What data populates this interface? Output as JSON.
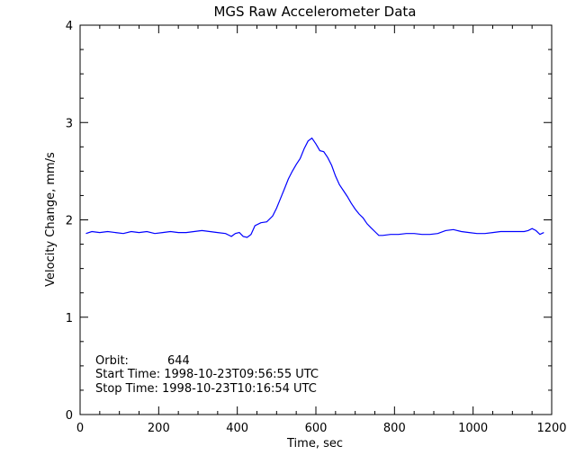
{
  "chart_data": {
    "type": "line",
    "title": "MGS Raw Accelerometer Data",
    "xlabel": "Time, sec",
    "ylabel": "Velocity Change, mm/s",
    "xlim": [
      0,
      1200
    ],
    "ylim": [
      0,
      4
    ],
    "xticks": [
      "0",
      "200",
      "400",
      "600",
      "800",
      "1000",
      "1200"
    ],
    "yticks": [
      "0",
      "1",
      "2",
      "3",
      "4"
    ],
    "grid": false,
    "line_color": "#0000ff",
    "series": [
      {
        "x": [
          15,
          30,
          50,
          70,
          90,
          110,
          130,
          150,
          170,
          190,
          210,
          230,
          250,
          270,
          290,
          310,
          330,
          350,
          370,
          385,
          395,
          405,
          415,
          425,
          435,
          445,
          460,
          475,
          490,
          500,
          510,
          520,
          530,
          540,
          550,
          560,
          570,
          580,
          590,
          600,
          610,
          620,
          630,
          640,
          650,
          660,
          670,
          680,
          690,
          700,
          710,
          720,
          730,
          740,
          750,
          760,
          770,
          790,
          810,
          830,
          850,
          870,
          890,
          910,
          930,
          950,
          970,
          990,
          1010,
          1030,
          1050,
          1070,
          1090,
          1110,
          1130,
          1140,
          1150,
          1160,
          1170,
          1180
        ],
        "y": [
          1.86,
          1.88,
          1.87,
          1.88,
          1.87,
          1.86,
          1.88,
          1.87,
          1.88,
          1.86,
          1.87,
          1.88,
          1.87,
          1.87,
          1.88,
          1.89,
          1.88,
          1.87,
          1.86,
          1.83,
          1.86,
          1.87,
          1.83,
          1.82,
          1.85,
          1.94,
          1.97,
          1.98,
          2.04,
          2.12,
          2.22,
          2.32,
          2.42,
          2.5,
          2.57,
          2.63,
          2.73,
          2.81,
          2.84,
          2.78,
          2.71,
          2.7,
          2.64,
          2.56,
          2.45,
          2.36,
          2.3,
          2.24,
          2.17,
          2.11,
          2.06,
          2.02,
          1.96,
          1.92,
          1.88,
          1.84,
          1.84,
          1.85,
          1.85,
          1.86,
          1.86,
          1.85,
          1.85,
          1.86,
          1.89,
          1.9,
          1.88,
          1.87,
          1.86,
          1.86,
          1.87,
          1.88,
          1.88,
          1.88,
          1.88,
          1.89,
          1.91,
          1.89,
          1.85,
          1.87
        ]
      }
    ]
  },
  "annotations": {
    "orbit_label": "Orbit:",
    "orbit_value": "644",
    "start_time": "Start Time: 1998-10-23T09:56:55 UTC",
    "stop_time": "Stop Time: 1998-10-23T10:16:54 UTC"
  }
}
